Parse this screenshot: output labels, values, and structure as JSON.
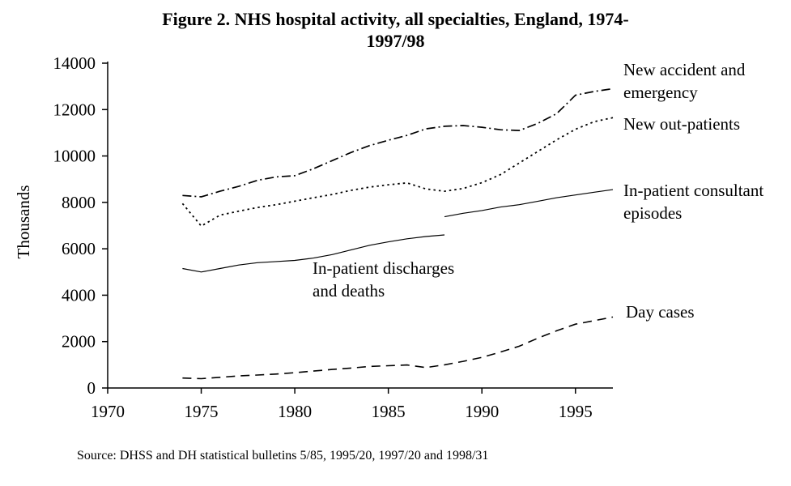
{
  "header": {
    "title_line1": "Figure 2. NHS hospital activity, all specialties, England, 1974-",
    "title_line2": "1997/98"
  },
  "y_axis": {
    "label": "Thousands"
  },
  "annotations": {
    "accident_emergency": {
      "line1": "New accident and",
      "line2": "emergency"
    },
    "out_patients": {
      "line1": "New out-patients",
      "line2": ""
    },
    "consultant_episodes": {
      "line1": "In-patient consultant",
      "line2": "episodes"
    },
    "discharges_deaths": {
      "line1": "In-patient discharges",
      "line2": "and deaths"
    },
    "day_cases": {
      "line1": "Day cases",
      "line2": ""
    }
  },
  "source": "Source: DHSS and DH statistical bulletins 5/85, 1995/20, 1997/20 and 1998/31",
  "colors": {
    "line": "#000000",
    "background": "#ffffff",
    "text": "#000000"
  },
  "chart_data": {
    "type": "line",
    "title": "Figure 2. NHS hospital activity, all specialties, England, 1974-1997/98",
    "xlabel": "",
    "ylabel": "Thousands",
    "units": "thousands",
    "xlim": [
      1970,
      1997
    ],
    "ylim": [
      0,
      14000
    ],
    "x_ticks": [
      1970,
      1975,
      1980,
      1985,
      1990,
      1995
    ],
    "y_ticks": [
      0,
      2000,
      4000,
      6000,
      8000,
      10000,
      12000,
      14000
    ],
    "grid": false,
    "legend_position": "right-annotations",
    "series": [
      {
        "name": "New accident and emergency",
        "style": "dash-dot",
        "x": [
          1974,
          1975,
          1976,
          1977,
          1978,
          1979,
          1980,
          1981,
          1982,
          1983,
          1984,
          1985,
          1986,
          1987,
          1988,
          1989,
          1990,
          1991,
          1992,
          1993,
          1994,
          1995,
          1996,
          1997
        ],
        "values": [
          8300,
          8240,
          8480,
          8690,
          8950,
          9100,
          9150,
          9450,
          9800,
          10150,
          10450,
          10680,
          10890,
          11170,
          11280,
          11310,
          11240,
          11130,
          11100,
          11410,
          11830,
          12620,
          12780,
          12900
        ]
      },
      {
        "name": "New out-patients",
        "style": "dotted",
        "x": [
          1974,
          1975,
          1976,
          1977,
          1978,
          1979,
          1980,
          1981,
          1982,
          1983,
          1984,
          1985,
          1986,
          1987,
          1988,
          1989,
          1990,
          1991,
          1992,
          1993,
          1994,
          1995,
          1996,
          1997
        ],
        "values": [
          7950,
          6980,
          7450,
          7620,
          7780,
          7900,
          8050,
          8200,
          8340,
          8520,
          8660,
          8760,
          8840,
          8580,
          8480,
          8600,
          8850,
          9200,
          9700,
          10200,
          10700,
          11150,
          11480,
          11650
        ]
      },
      {
        "name": "In-patient consultant episodes",
        "style": "solid",
        "x": [
          1988,
          1989,
          1990,
          1991,
          1992,
          1993,
          1994,
          1995,
          1996,
          1997
        ],
        "values": [
          7380,
          7530,
          7650,
          7800,
          7900,
          8050,
          8200,
          8320,
          8440,
          8550
        ]
      },
      {
        "name": "In-patient discharges and deaths",
        "style": "solid",
        "x": [
          1974,
          1975,
          1976,
          1977,
          1978,
          1979,
          1980,
          1981,
          1982,
          1983,
          1984,
          1985,
          1986,
          1987,
          1988
        ],
        "values": [
          5150,
          5000,
          5150,
          5300,
          5400,
          5450,
          5500,
          5600,
          5750,
          5950,
          6150,
          6300,
          6430,
          6530,
          6600
        ]
      },
      {
        "name": "Day cases",
        "style": "dashed",
        "x": [
          1974,
          1975,
          1976,
          1977,
          1978,
          1979,
          1980,
          1981,
          1982,
          1983,
          1984,
          1985,
          1986,
          1987,
          1988,
          1989,
          1990,
          1991,
          1992,
          1993,
          1994,
          1995,
          1996,
          1997
        ],
        "values": [
          430,
          400,
          460,
          520,
          560,
          600,
          660,
          730,
          800,
          860,
          930,
          960,
          990,
          880,
          1000,
          1150,
          1320,
          1550,
          1800,
          2150,
          2470,
          2750,
          2900,
          3060
        ]
      }
    ],
    "source": "Source: DHSS and DH statistical bulletins 5/85, 1995/20, 1997/20 and 1998/31"
  }
}
